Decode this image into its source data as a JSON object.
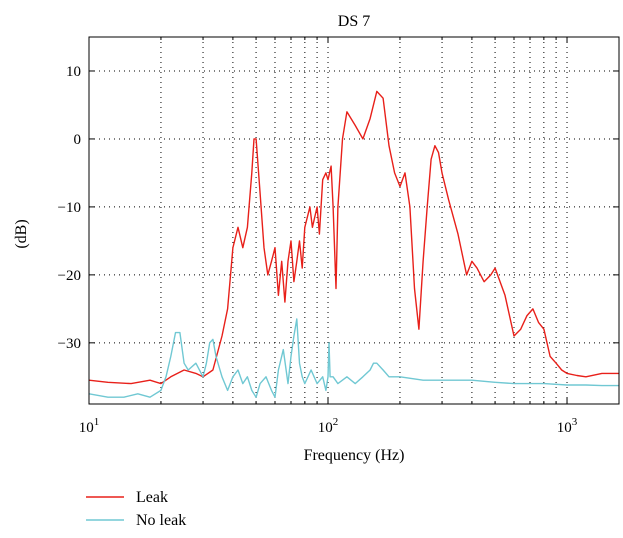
{
  "chart_data": {
    "type": "line",
    "title": "DS 7",
    "xlabel": "Frequency (Hz)",
    "ylabel": "(dB)",
    "x_scale": "log",
    "xlim": [
      10,
      1650
    ],
    "ylim": [
      -39,
      15
    ],
    "x_ticks": [
      {
        "value": 10,
        "base": "10",
        "exp": "1"
      },
      {
        "value": 100,
        "base": "10",
        "exp": "2"
      },
      {
        "value": 1000,
        "base": "10",
        "exp": "3"
      }
    ],
    "y_ticks": [
      10,
      0,
      -10,
      -20,
      -30
    ],
    "y_tick_labels": [
      "10",
      "0",
      "−10",
      "−20",
      "−30"
    ],
    "grid": true,
    "legend_position": "bottom-left, below plot",
    "series": [
      {
        "name": "Leak",
        "color": "#e8201a",
        "x": [
          10,
          12,
          15,
          18,
          20,
          22,
          25,
          28,
          30,
          33,
          36,
          38,
          40,
          42,
          44,
          46,
          48,
          49,
          50,
          52,
          54,
          56,
          58,
          60,
          62,
          64,
          66,
          68,
          70,
          72,
          74,
          76,
          78,
          80,
          84,
          86,
          90,
          92,
          95,
          98,
          100,
          103,
          105,
          108,
          110,
          115,
          120,
          130,
          140,
          150,
          160,
          170,
          180,
          190,
          200,
          210,
          220,
          230,
          240,
          250,
          260,
          270,
          280,
          290,
          300,
          320,
          350,
          380,
          400,
          420,
          450,
          480,
          500,
          550,
          600,
          640,
          680,
          720,
          760,
          800,
          850,
          900,
          950,
          1000,
          1100,
          1200,
          1400,
          1650
        ],
        "y": [
          -35.5,
          -35.8,
          -36,
          -35.5,
          -36,
          -35,
          -34,
          -34.5,
          -35,
          -34,
          -29,
          -25,
          -16,
          -13,
          -16,
          -13,
          -5,
          0,
          0,
          -8,
          -16,
          -20,
          -18,
          -16,
          -23,
          -18,
          -24,
          -18,
          -15,
          -21,
          -18,
          -15,
          -19,
          -13,
          -10,
          -13,
          -10,
          -14,
          -6,
          -5,
          -6,
          -4,
          -10,
          -22,
          -10,
          0,
          4,
          2,
          0,
          3,
          7,
          6,
          -1,
          -5,
          -7,
          -5,
          -10,
          -22,
          -28,
          -18,
          -10,
          -3,
          -1,
          -2,
          -5,
          -9,
          -14,
          -20,
          -18,
          -19,
          -21,
          -20,
          -19,
          -23,
          -29,
          -28,
          -26,
          -25,
          -27,
          -28,
          -32,
          -33,
          -34,
          -34.5,
          -34.8,
          -35,
          -34.5,
          -34.5
        ]
      },
      {
        "name": "No leak",
        "color": "#70c8d3",
        "x": [
          10,
          12,
          14,
          16,
          18,
          20,
          21,
          22,
          23,
          24,
          25,
          26,
          28,
          30,
          31,
          32,
          33,
          34,
          36,
          38,
          40,
          42,
          44,
          46,
          48,
          50,
          52,
          55,
          58,
          60,
          62,
          65,
          68,
          70,
          72,
          74,
          76,
          78,
          80,
          85,
          90,
          95,
          98,
          100,
          101,
          102,
          105,
          110,
          120,
          130,
          140,
          150,
          155,
          160,
          170,
          180,
          200,
          250,
          300,
          400,
          500,
          600,
          800,
          1000,
          1200,
          1400,
          1650
        ],
        "y": [
          -37.5,
          -38,
          -38,
          -37.5,
          -38,
          -37,
          -35,
          -32,
          -28.5,
          -28.5,
          -33,
          -34,
          -33,
          -35,
          -33,
          -30,
          -29.5,
          -32,
          -35,
          -37,
          -35,
          -34,
          -36,
          -35,
          -37,
          -38,
          -36,
          -35,
          -37,
          -38,
          -34,
          -31,
          -36,
          -32,
          -29,
          -26.5,
          -33,
          -35,
          -36,
          -34,
          -36,
          -35,
          -37,
          -35,
          -30,
          -35,
          -35,
          -36,
          -35,
          -36,
          -35,
          -34,
          -33,
          -33,
          -34,
          -35,
          -35,
          -35.5,
          -35.5,
          -35.5,
          -35.8,
          -36,
          -36,
          -36.2,
          -36.2,
          -36.3,
          -36.3
        ]
      }
    ]
  }
}
